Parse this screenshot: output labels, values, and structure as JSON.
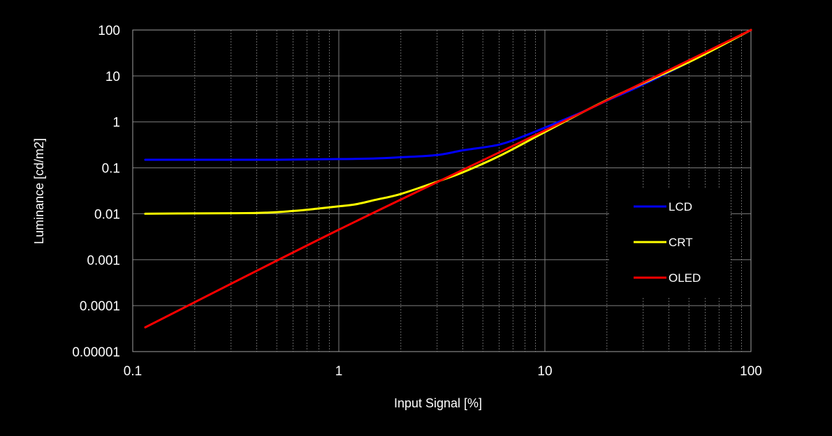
{
  "chart_data": {
    "type": "line",
    "title": "",
    "xlabel": "Input Signal [%]",
    "ylabel": "Luminance [cd/m2]",
    "x_scale": "log",
    "y_scale": "log",
    "xlim": [
      0.1,
      100
    ],
    "ylim": [
      1e-05,
      100
    ],
    "x_ticks": [
      "0.1",
      "1",
      "10",
      "100"
    ],
    "y_ticks": [
      "100",
      "10",
      "1",
      "0.1",
      "0.01",
      "0.001",
      "0.0001",
      "0.00001"
    ],
    "grid": true,
    "legend_position": "right",
    "background": "#000000",
    "grid_color": "#808080",
    "series": [
      {
        "name": "LCD",
        "color": "#0000ff",
        "x": [
          0.115,
          0.2,
          0.5,
          1,
          1.5,
          2,
          3,
          4,
          6,
          8,
          10,
          15,
          20,
          30,
          50,
          100
        ],
        "y": [
          0.15,
          0.15,
          0.15,
          0.155,
          0.16,
          0.17,
          0.19,
          0.24,
          0.32,
          0.5,
          0.75,
          1.6,
          2.9,
          6.5,
          20,
          100
        ]
      },
      {
        "name": "CRT",
        "color": "#ffff00",
        "x": [
          0.115,
          0.2,
          0.4,
          0.6,
          0.8,
          1,
          1.2,
          1.5,
          2,
          3,
          4,
          6,
          10,
          20,
          50,
          100
        ],
        "y": [
          0.01,
          0.0102,
          0.0104,
          0.0115,
          0.013,
          0.0145,
          0.016,
          0.02,
          0.027,
          0.05,
          0.08,
          0.18,
          0.6,
          3,
          20,
          100
        ]
      },
      {
        "name": "OLED",
        "color": "#ff0000",
        "x": [
          0.115,
          1,
          10,
          100
        ],
        "y": [
          3.37e-05,
          0.0045,
          0.65,
          100
        ]
      }
    ]
  }
}
